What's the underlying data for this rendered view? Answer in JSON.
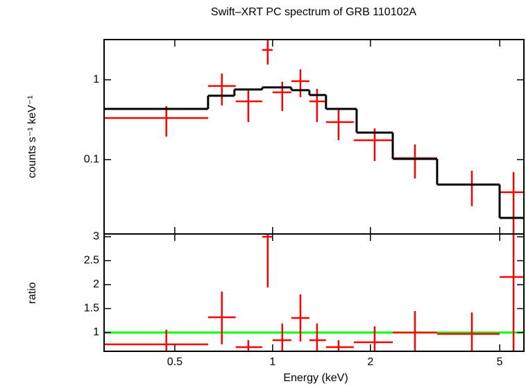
{
  "chart_data": [
    {
      "type": "spectrum",
      "title": "Swift–XRT PC spectrum of GRB 110102A",
      "ylabel": "counts s⁻¹ keV⁻¹",
      "log_x": true,
      "log_y": true,
      "xlim": [
        0.303,
        5.935
      ],
      "ylim": [
        0.0117,
        3.19
      ],
      "xticks": [
        0.5,
        1,
        2,
        5
      ],
      "yticks": [
        0.1,
        1
      ],
      "series": [
        {
          "color": "#ff0000",
          "x": [
            0.471,
            0.698,
            0.842,
            0.966,
            1.071,
            1.218,
            1.37,
            1.596,
            2.061,
            2.742,
            4.104,
            5.514
          ],
          "x_low": [
            0.303,
            0.633,
            0.77,
            0.929,
            1.0,
            1.142,
            1.298,
            1.46,
            1.778,
            2.343,
            3.209,
            4.996
          ],
          "x_high": [
            0.633,
            0.77,
            0.929,
            1.0,
            1.142,
            1.298,
            1.46,
            1.778,
            2.343,
            3.209,
            4.996,
            5.935
          ],
          "values": [
            0.332,
            0.835,
            0.537,
            2.365,
            0.697,
            0.961,
            0.537,
            0.295,
            0.175,
            0.104,
            0.0486,
            0.039
          ],
          "y_low": [
            0.194,
            0.477,
            0.295,
            1.554,
            0.406,
            0.606,
            0.295,
            0.175,
            0.096,
            0.058,
            0.0261,
            0.0117
          ],
          "y_high": [
            0.467,
            1.197,
            0.771,
            3.19,
            0.942,
            1.35,
            0.771,
            0.423,
            0.246,
            0.155,
            0.0726,
            0.0697
          ]
        }
      ],
      "model": {
        "color": "#000000",
        "edges": [
          0.303,
          0.633,
          0.763,
          0.929,
          1.142,
          1.298,
          1.46,
          1.814,
          2.343,
          3.209,
          4.996,
          5.935
        ],
        "values": [
          0.431,
          0.631,
          0.756,
          0.802,
          0.741,
          0.644,
          0.431,
          0.218,
          0.102,
          0.0486,
          0.0186
        ]
      }
    },
    {
      "type": "ratio",
      "xlabel": "Energy (keV)",
      "ylabel": "ratio",
      "log_x": true,
      "log_y": false,
      "xlim": [
        0.303,
        5.935
      ],
      "ylim": [
        0.609,
        3.058
      ],
      "xticks": [
        0.5,
        1,
        2,
        5
      ],
      "yticks": [
        1,
        1.5,
        2,
        2.5,
        3
      ],
      "reference": {
        "value": 1,
        "color": "#00ff00"
      },
      "series": [
        {
          "color": "#ff0000",
          "x": [
            0.471,
            0.698,
            0.842,
            0.966,
            1.071,
            1.218,
            1.37,
            1.596,
            2.061,
            2.742,
            4.104,
            5.514
          ],
          "x_low": [
            0.303,
            0.633,
            0.77,
            0.929,
            1.0,
            1.142,
            1.298,
            1.46,
            1.778,
            2.343,
            3.209,
            4.996
          ],
          "x_high": [
            0.633,
            0.77,
            0.929,
            1.0,
            1.142,
            1.298,
            1.46,
            1.778,
            2.343,
            3.209,
            4.996,
            5.935
          ],
          "values": [
            0.754,
            1.319,
            0.696,
            3.0,
            0.841,
            1.304,
            0.841,
            0.696,
            0.797,
            1.0,
            0.971,
            2.159
          ],
          "y_low": [
            0.609,
            0.754,
            0.609,
            1.942,
            0.609,
            0.812,
            0.609,
            0.609,
            0.609,
            0.609,
            0.609,
            0.609
          ],
          "y_high": [
            1.058,
            1.855,
            0.841,
            3.058,
            1.188,
            1.797,
            1.188,
            0.841,
            1.13,
            1.449,
            1.42,
            3.058
          ]
        }
      ]
    }
  ]
}
